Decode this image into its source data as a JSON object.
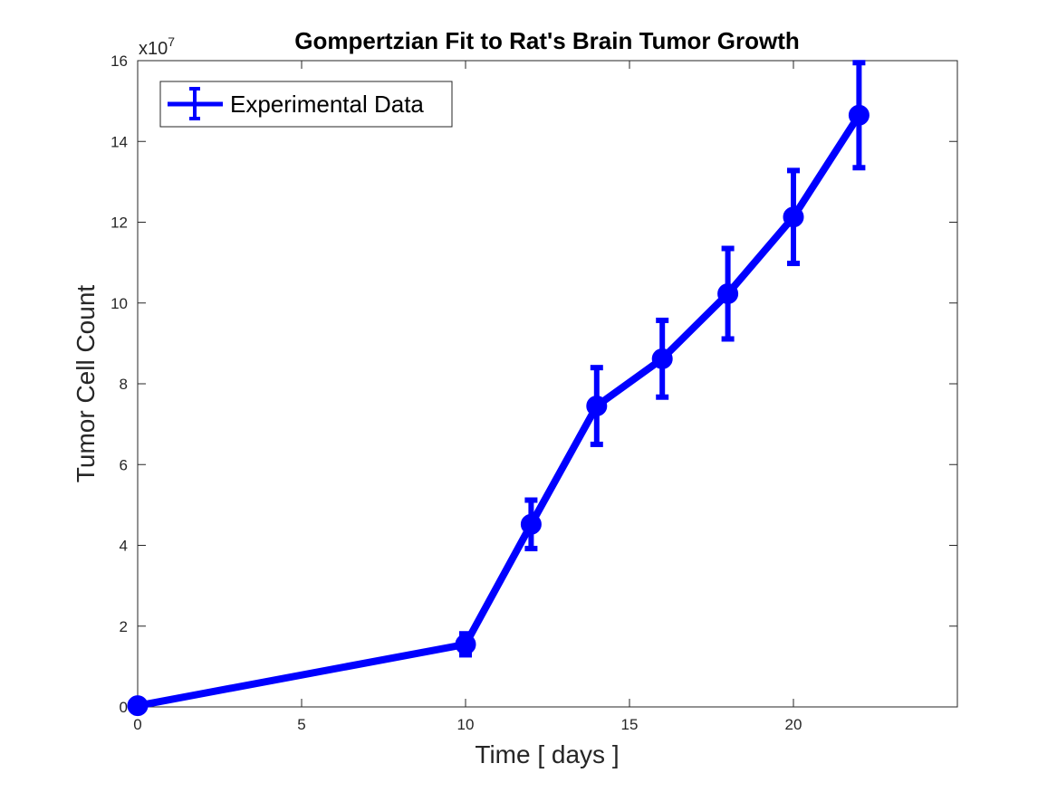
{
  "chart_data": {
    "type": "line",
    "title": "Gompertzian Fit to Rat's Brain Tumor Growth",
    "xlabel": "Time [ days ]",
    "ylabel": "Tumor Cell Count",
    "y_multiplier": {
      "base": "x10",
      "exponent": "7"
    },
    "xlim": [
      0,
      25
    ],
    "ylim": [
      0,
      16
    ],
    "x_ticks": [
      0,
      5,
      10,
      15,
      20
    ],
    "x_tick_labels": [
      "0",
      "5",
      "10",
      "15",
      "20"
    ],
    "y_ticks": [
      0,
      2,
      4,
      6,
      8,
      10,
      12,
      14,
      16
    ],
    "y_tick_labels": [
      "0",
      "2",
      "4",
      "6",
      "8",
      "10",
      "12",
      "14",
      "16"
    ],
    "grid": false,
    "legend_position": "top-left",
    "series": [
      {
        "name": "Experimental Data",
        "color": "#0000ff",
        "x": [
          0,
          10,
          12,
          14,
          16,
          18,
          20,
          22
        ],
        "y": [
          0.03,
          1.55,
          4.52,
          7.45,
          8.62,
          10.23,
          12.13,
          14.65
        ],
        "error": [
          0,
          0.26,
          0.6,
          0.95,
          0.95,
          1.12,
          1.15,
          1.3
        ]
      }
    ]
  }
}
